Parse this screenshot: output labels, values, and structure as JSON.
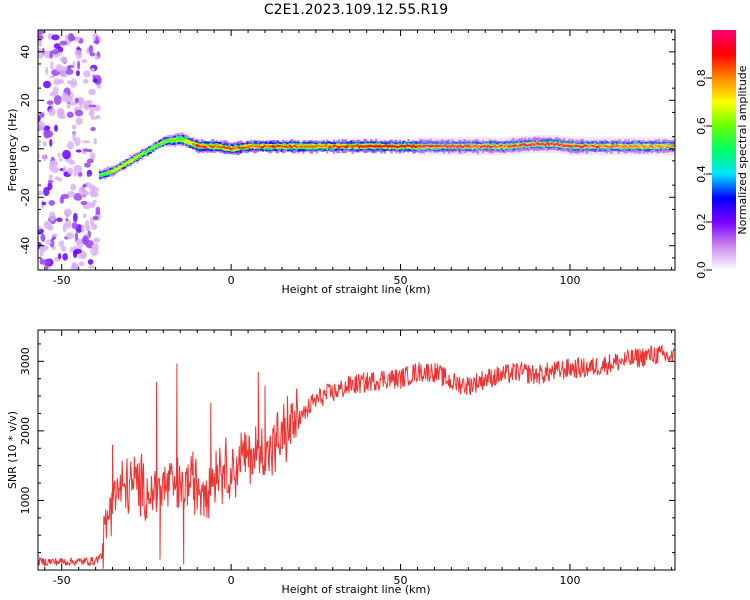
{
  "title": "C2E1.2023.109.12.55.R19",
  "chart_data": [
    {
      "type": "heatmap",
      "xlabel": "Height of straight line (km)",
      "ylabel": "Frequency (Hz)",
      "xlim": [
        -57,
        131
      ],
      "ylim": [
        -50,
        49
      ],
      "xticks": [
        -50,
        0,
        50,
        100
      ],
      "yticks": [
        -40,
        -20,
        0,
        20,
        40
      ],
      "colorbar": {
        "label": "Normalized spectral amplitude",
        "range": [
          0,
          1
        ],
        "ticks": [
          "0.0",
          "0.2",
          "0.4",
          "0.6",
          "0.8"
        ],
        "colormap": [
          "#ffffff",
          "#cc88ee",
          "#7a00ff",
          "#0000ff",
          "#00e5ff",
          "#00ff66",
          "#66ff00",
          "#ffff00",
          "#ff8800",
          "#ff0000",
          "#ff0077"
        ]
      },
      "noise_region_x": [
        -57,
        -39
      ],
      "ridge": {
        "x": [
          -39,
          -35,
          -30,
          -25,
          -20,
          -15,
          -10,
          -5,
          0,
          5,
          10,
          20,
          30,
          40,
          50,
          60,
          70,
          80,
          90,
          95,
          100,
          110,
          120,
          131
        ],
        "freq": [
          -11,
          -9,
          -5,
          -1,
          3,
          4,
          1,
          1,
          0,
          1,
          1,
          1,
          1,
          1,
          1,
          1,
          1,
          1,
          2,
          2,
          1,
          1,
          1,
          1
        ],
        "amplitude": [
          0.5,
          0.7,
          0.75,
          0.55,
          0.6,
          0.6,
          0.95,
          0.9,
          0.95,
          0.9,
          0.95,
          0.9,
          0.9,
          1.0,
          1.0,
          1.0,
          0.95,
          0.9,
          1.0,
          1.0,
          0.95,
          0.9,
          0.85,
          0.85
        ]
      }
    },
    {
      "type": "line",
      "xlabel": "Height of straight line (km)",
      "ylabel": "SNR (10 * v/v)",
      "xlim": [
        -57,
        131
      ],
      "ylim": [
        0,
        3450
      ],
      "xticks": [
        -50,
        0,
        50,
        100
      ],
      "yticks": [
        1000,
        2000,
        3000
      ],
      "color": "#ee3333",
      "series": [
        {
          "x": [
            -57,
            -45,
            -40,
            -38,
            -37,
            -35,
            -33,
            -30,
            -27,
            -24,
            -21,
            -18,
            -15,
            -12,
            -9,
            -6,
            -3,
            0,
            3,
            6,
            9,
            12,
            15,
            18,
            21,
            24,
            27,
            30,
            35,
            40,
            45,
            50,
            55,
            60,
            65,
            70,
            75,
            80,
            85,
            90,
            95,
            100,
            105,
            110,
            115,
            120,
            125,
            131
          ],
          "y": [
            120,
            120,
            130,
            220,
            600,
            1150,
            1100,
            1250,
            1200,
            1100,
            1150,
            1250,
            1100,
            1300,
            1200,
            1300,
            1500,
            1400,
            1600,
            1650,
            1700,
            1750,
            1900,
            2100,
            2200,
            2400,
            2500,
            2550,
            2650,
            2700,
            2750,
            2750,
            2850,
            2850,
            2700,
            2650,
            2750,
            2800,
            2850,
            2800,
            2850,
            2900,
            2900,
            2950,
            3000,
            3050,
            3100,
            3050
          ]
        }
      ],
      "spikes": [
        {
          "x": -35,
          "y": 1800
        },
        {
          "x": -22,
          "y": 2700
        },
        {
          "x": -16,
          "y": 2970
        },
        {
          "x": -6,
          "y": 2400
        },
        {
          "x": 8,
          "y": 2850
        },
        {
          "x": 10,
          "y": 2650
        },
        {
          "x": -21,
          "y": 150
        },
        {
          "x": -14,
          "y": 80
        }
      ]
    }
  ]
}
